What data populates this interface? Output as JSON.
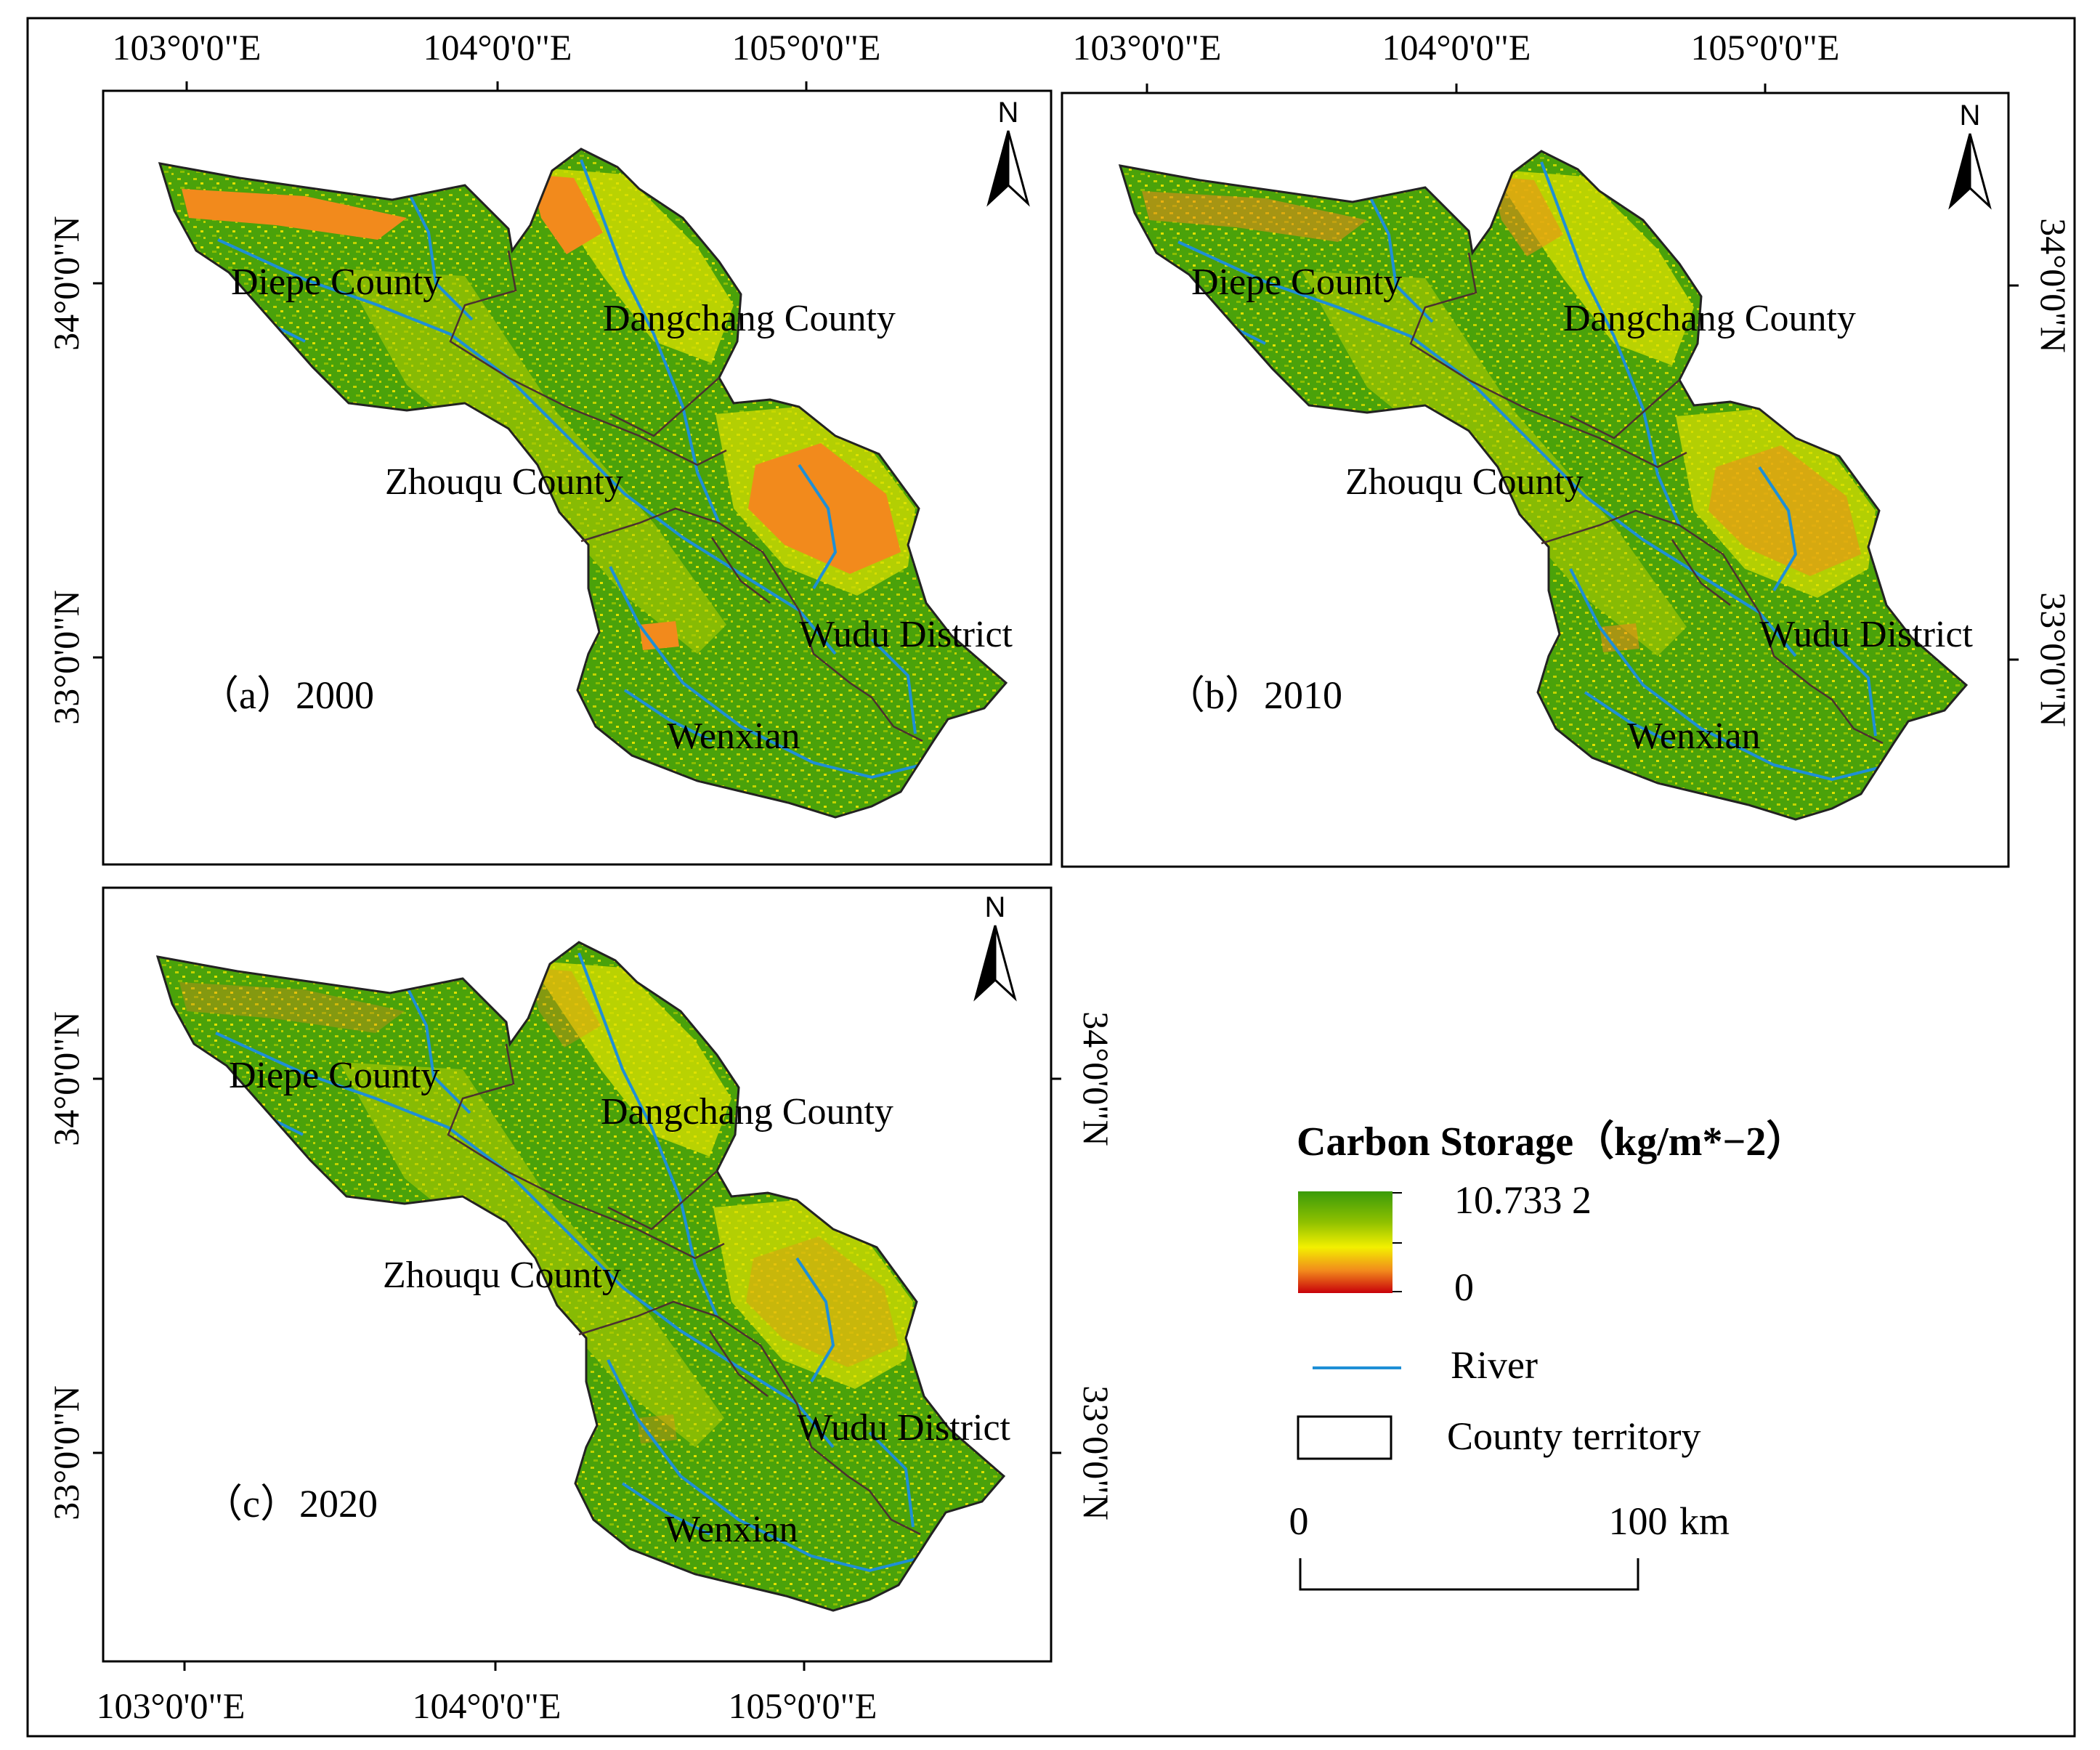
{
  "axes": {
    "longitude_ticks": [
      "103°0'0\"E",
      "104°0'0\"E",
      "105°0'0\"E"
    ],
    "latitude_ticks": [
      "34°0'0\"N",
      "33°0'0\"N"
    ]
  },
  "north_arrow_label": "N",
  "panels": [
    {
      "label": "（a）2000",
      "year": 2000,
      "orange_extent": "high"
    },
    {
      "label": "（b）2010",
      "year": 2010,
      "orange_extent": "medium"
    },
    {
      "label": "（c）2020",
      "year": 2020,
      "orange_extent": "low"
    }
  ],
  "counties": [
    {
      "name": "Diepe County"
    },
    {
      "name": "Dangchang County"
    },
    {
      "name": "Zhouqu County"
    },
    {
      "name": "Wudu District"
    },
    {
      "name": "Wenxian"
    }
  ],
  "legend": {
    "title": "Carbon Storage（kg/m*−2）",
    "max_label": "10.733 2",
    "min_label": "0",
    "river_label": "River",
    "county_label": "County territory",
    "gradient_colors": [
      "#3a9b0a",
      "#8ec000",
      "#f3f000",
      "#f28a1c",
      "#c8000a"
    ],
    "river_color": "#1e8fd6"
  },
  "scale_bar": {
    "start": "0",
    "end": "100",
    "unit": "km"
  }
}
